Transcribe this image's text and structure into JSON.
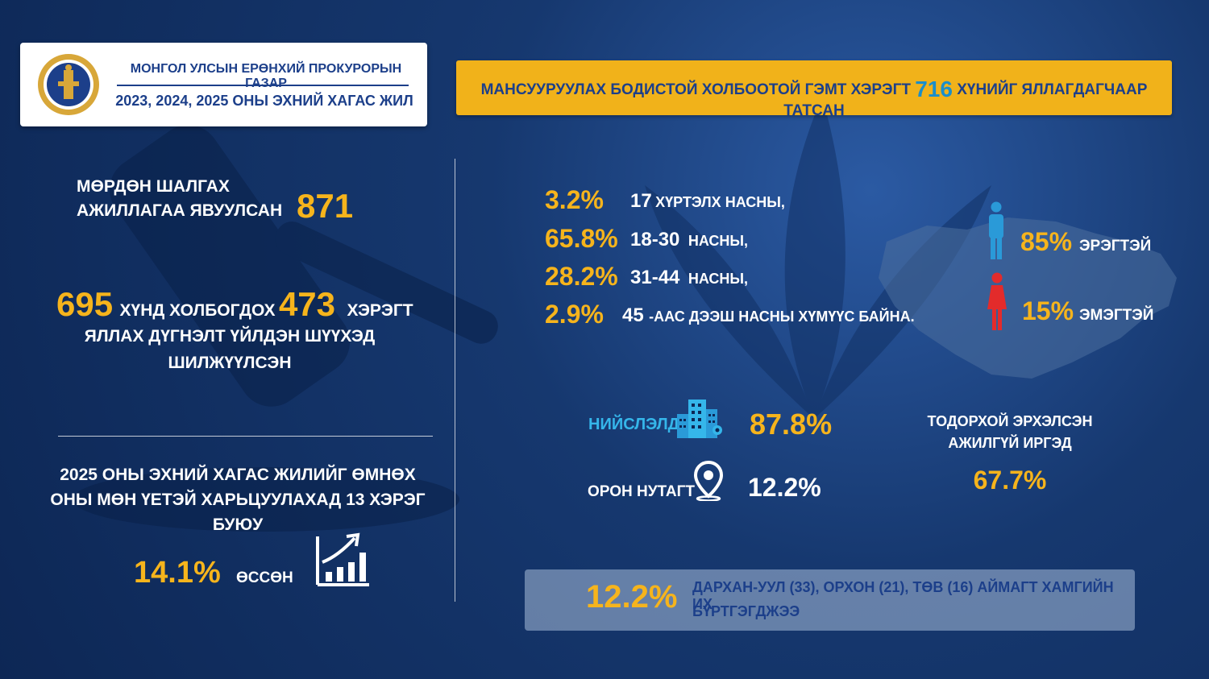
{
  "header": {
    "org_name": "МОНГОЛ УЛСЫН ЕРӨНХИЙ ПРОКУРОРЫН ГАЗАР",
    "period": "2023, 2024, 2025 ОНЫ ЭХНИЙ ХАГАС ЖИЛ"
  },
  "banner": {
    "text_before": "МАНСУУРУУЛАХ БОДИСТОЙ ХОЛБООТОЙ ГЭМТ ХЭРЭГТ",
    "number": "716",
    "text_after": "ХҮНИЙГ ЯЛЛАГДАГЧААР ТАТСАН"
  },
  "investigation": {
    "line1": "МӨРДӨН ШАЛГАХ",
    "line2": "АЖИЛЛАГАА ЯВУУЛСАН",
    "count": "871"
  },
  "prosecution": {
    "persons": "695",
    "text_a": "ХҮНД ХОЛБОГДОХ",
    "cases": "473",
    "text_b": "ХЭРЭГТ",
    "line2": "ЯЛЛАХ ДҮГНЭЛТ ҮЙЛДЭН ШҮҮХЭД",
    "line3": "ШИЛЖҮҮЛСЭН"
  },
  "comparison": {
    "line1": "2025 ОНЫ ЭХНИЙ ХАГАС ЖИЛИЙГ ӨМНӨХ",
    "line2": "ОНЫ МӨН ҮЕТЭЙ ХАРЬЦУУЛАХАД 13 ХЭРЭГ",
    "line3": "БУЮУ",
    "percent": "14.1%",
    "label": "ӨССӨН",
    "icon": "growth-chart-icon"
  },
  "age_groups": [
    {
      "pct": "3.2%",
      "num": "17",
      "label": "ХҮРТЭЛХ НАСНЫ,"
    },
    {
      "pct": "65.8%",
      "num": "18-30",
      "label": "НАСНЫ,"
    },
    {
      "pct": "28.2%",
      "num": "31-44",
      "label": "НАСНЫ,"
    },
    {
      "pct": "2.9%",
      "num": "45",
      "label": "-ААС ДЭЭШ НАСНЫ ХҮМҮҮС БАЙНА."
    }
  ],
  "gender": {
    "male_pct": "85%",
    "male_label": "ЭРЭГТЭЙ",
    "female_pct": "15%",
    "female_label": "ЭМЭГТЭЙ",
    "male_color": "#2a9ad8",
    "female_color": "#e32b2b"
  },
  "location": {
    "capital_label": "НИЙСЛЭЛД",
    "capital_pct": "87.8%",
    "rural_label": "ОРОН НУТАГТ",
    "rural_pct": "12.2%"
  },
  "unemployed": {
    "line1": "ТОДОРХОЙ ЭРХЭЛСЭН",
    "line2": "АЖИЛГҮЙ ИРГЭД",
    "pct": "67.7%"
  },
  "provinces": {
    "pct": "12.2%",
    "line1": "ДАРХАН-УУЛ (33), ОРХОН (21), ТӨВ (16) АЙМАГТ ХАМГИЙН ИХ",
    "line2": "БҮРТГЭГДЖЭЭ"
  },
  "colors": {
    "accent_gold": "#f6b41c",
    "accent_blue": "#35b6ea",
    "navy": "#1c3f8a"
  }
}
